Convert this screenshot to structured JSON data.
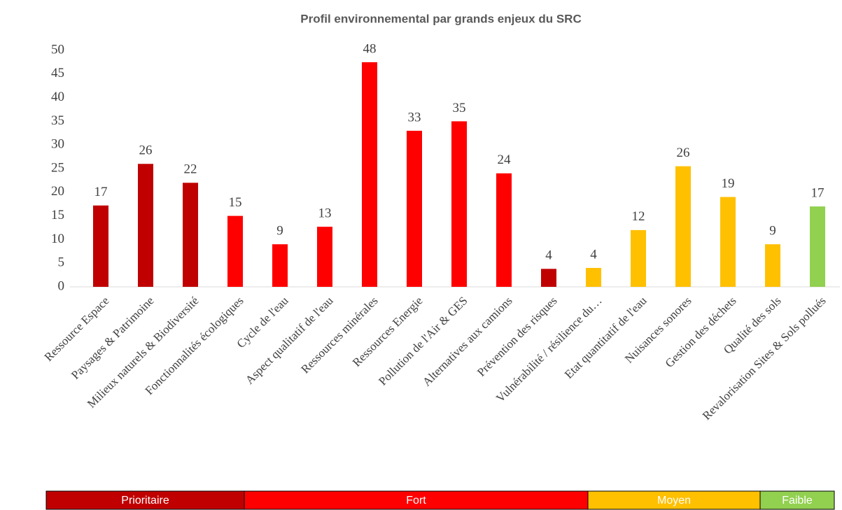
{
  "chart_data": {
    "type": "bar",
    "title": "Profil environnemental par grands enjeux du SRC",
    "categories": [
      "Ressource Espace",
      "Paysages & Patrimoine",
      "Milieux naturels & Biodiversité",
      "Fonctionnalités écologiques",
      "Cycle de l'eau",
      "Aspect qualitatif de l'eau",
      "Ressources minérales",
      "Ressources Energie",
      "Pollution de l'Air & GES",
      "Alternatives aux camions",
      "Prévention des risques",
      "Vulnérabilité / résilience du…",
      "Etat quantitatif de l'eau",
      "Nuisances sonores",
      "Gestion des déchets",
      "Qualité des sols",
      "Revalorisation Sites & Sols pollués"
    ],
    "values": [
      17.2,
      26,
      22,
      15,
      9,
      12.7,
      47.5,
      33,
      35,
      24,
      3.8,
      4,
      12,
      25.5,
      19,
      9,
      17
    ],
    "value_labels": [
      "17",
      "26",
      "22",
      "15",
      "9",
      "13",
      "48",
      "33",
      "35",
      "24",
      "4",
      "4",
      "12",
      "26",
      "19",
      "9",
      "17"
    ],
    "colors": [
      "#c00000",
      "#c00000",
      "#c00000",
      "#ff0000",
      "#ff0000",
      "#ff0000",
      "#ff0000",
      "#ff0000",
      "#ff0000",
      "#ff0000",
      "#c00000",
      "#ffc000",
      "#ffc000",
      "#ffc000",
      "#ffc000",
      "#ffc000",
      "#92d050"
    ],
    "ylim": [
      0,
      50
    ],
    "yticks": [
      0,
      5,
      10,
      15,
      20,
      25,
      30,
      35,
      40,
      45,
      50
    ],
    "grid": false,
    "legend_bands": [
      {
        "name": "Prioritaire",
        "color": "#c00000"
      },
      {
        "name": "Fort",
        "color": "#ff0000"
      },
      {
        "name": "Moyen",
        "color": "#ffc000"
      },
      {
        "name": "Faible",
        "color": "#92d050"
      }
    ]
  }
}
